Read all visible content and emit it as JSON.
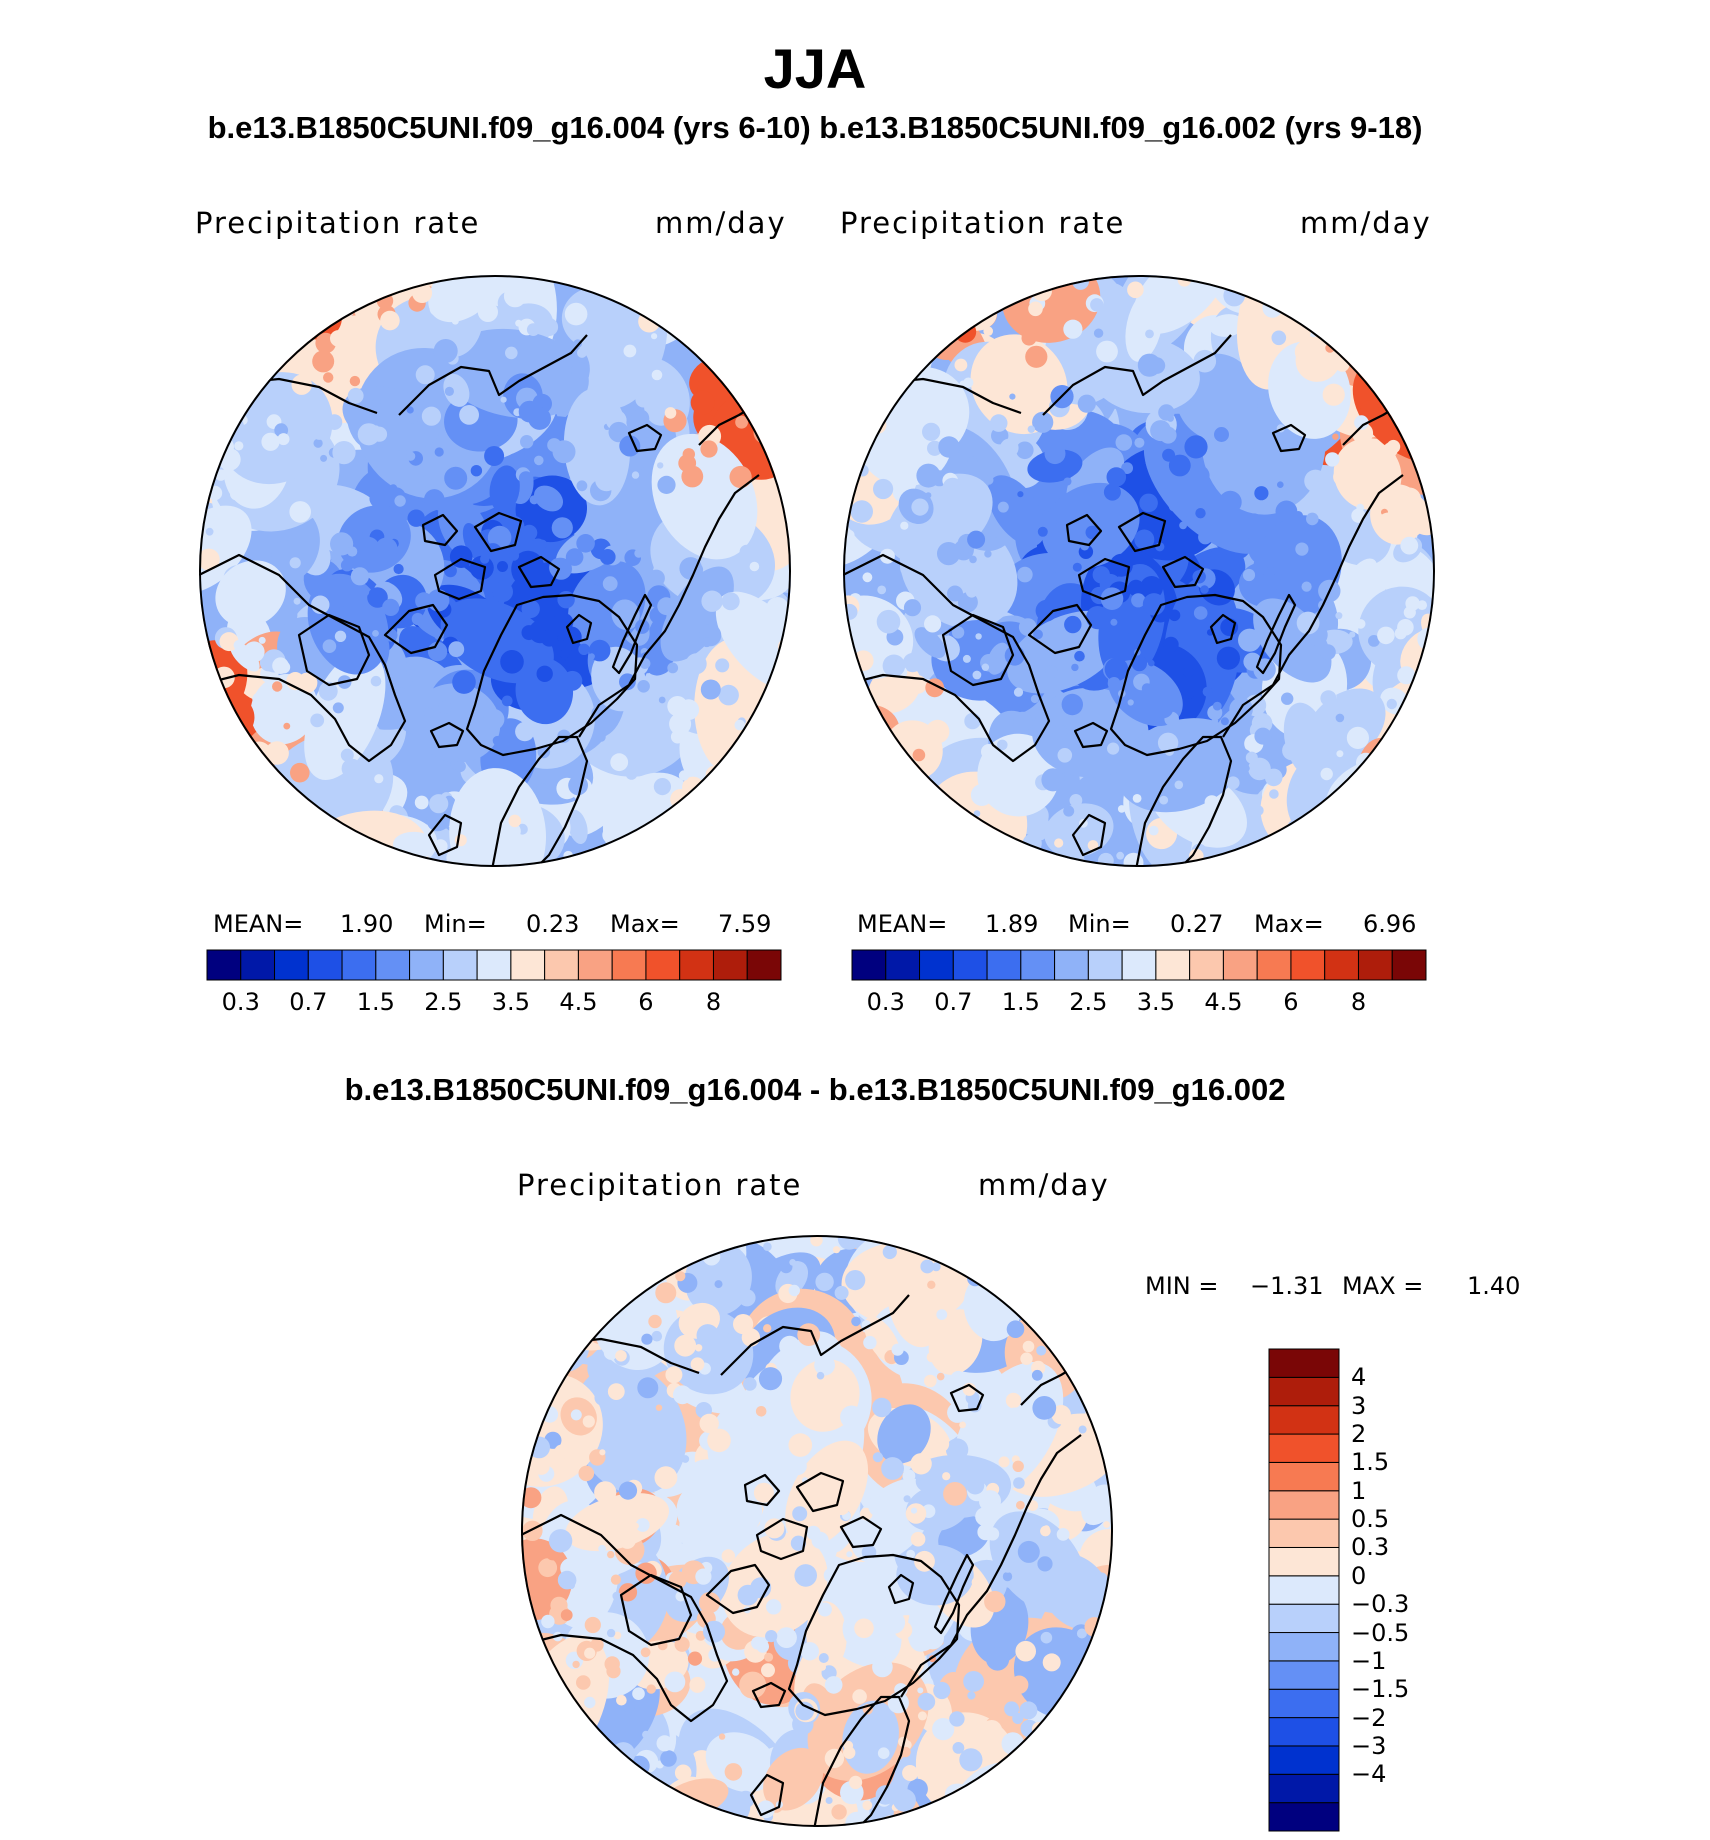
{
  "figure": {
    "season": "JJA",
    "case_line": "b.e13.B1850C5UNI.f09_g16.004 (yrs 6-10) b.e13.B1850C5UNI.f09_g16.002 (yrs 9-18)",
    "diff_title": "b.e13.B1850C5UNI.f09_g16.004 - b.e13.B1850C5UNI.f09_g16.002"
  },
  "panels": [
    {
      "variable": "Precipitation  rate",
      "units": "mm/day",
      "stats": {
        "mean_label": "MEAN=",
        "mean": "1.90",
        "min_label": "Min=",
        "min": "0.23",
        "max_label": "Max=",
        "max": "7.59"
      }
    },
    {
      "variable": "Precipitation  rate",
      "units": "mm/day",
      "stats": {
        "mean_label": "MEAN=",
        "mean": "1.89",
        "min_label": "Min=",
        "min": "0.27",
        "max_label": "Max=",
        "max": "6.96"
      }
    },
    {
      "variable": "Precipitation  rate",
      "units": "mm/day",
      "stats": {
        "min_label": "MIN =",
        "min": "−1.31",
        "max_label": "MAX =",
        "max": "1.40"
      }
    }
  ],
  "abs_colorbar": {
    "colors": [
      "#00007f",
      "#0018a8",
      "#0032cf",
      "#1e50e6",
      "#3c6ef0",
      "#6490f5",
      "#8fb2f8",
      "#b8d0fb",
      "#dce9fc",
      "#fde6d6",
      "#fcc8ae",
      "#f9a283",
      "#f77a52",
      "#f0522b",
      "#d23214",
      "#ae1d0b",
      "#7a0606"
    ],
    "tick_labels": [
      "0.3",
      "0.7",
      "1.5",
      "2.5",
      "3.5",
      "4.5",
      "6",
      "8"
    ]
  },
  "diff_colorbar": {
    "colors": [
      "#00007f",
      "#0018a8",
      "#0032cf",
      "#1e50e6",
      "#3c6ef0",
      "#6490f5",
      "#8fb2f8",
      "#b8d0fb",
      "#dce9fc",
      "#fde6d6",
      "#fcc8ae",
      "#f9a283",
      "#f77a52",
      "#f0522b",
      "#d23214",
      "#ae1d0b",
      "#7a0606"
    ],
    "tick_labels": [
      "4",
      "3",
      "2",
      "1.5",
      "1",
      "0.5",
      "0.3",
      "0",
      "−0.3",
      "−0.5",
      "−1",
      "−1.5",
      "−2",
      "−3",
      "−4"
    ]
  },
  "maps": {
    "projection": "north-polar-stereographic",
    "map1_palette": [
      "#1e50e6",
      "#3c6ef0",
      "#6490f5",
      "#8fb2f8",
      "#b8d0fb",
      "#dce9fc",
      "#fde6d6",
      "#f9a283",
      "#f0522b"
    ],
    "map2_palette": [
      "#1e50e6",
      "#3c6ef0",
      "#6490f5",
      "#8fb2f8",
      "#b8d0fb",
      "#dce9fc",
      "#fde6d6",
      "#f9a283",
      "#f0522b"
    ],
    "diff_palette": [
      "#8fb2f8",
      "#b8d0fb",
      "#dce9fc",
      "#fde6d6",
      "#fcc8ae",
      "#f9a283"
    ]
  }
}
